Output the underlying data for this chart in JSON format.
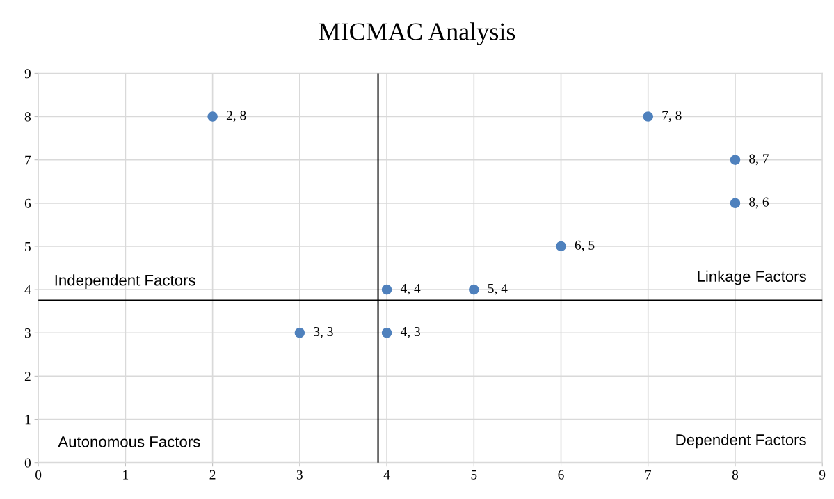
{
  "chart_data": {
    "type": "scatter",
    "title": "MICMAC Analysis",
    "x": [
      2,
      7,
      8,
      8,
      6,
      4,
      5,
      3,
      4
    ],
    "values": [
      8,
      8,
      7,
      6,
      5,
      4,
      4,
      3,
      3
    ],
    "value_labels": [
      "2, 8",
      "7, 8",
      "8, 7",
      "8, 6",
      "6, 5",
      "4, 4",
      "5, 4",
      "3, 3",
      "4, 3"
    ],
    "color": "#4f81bd",
    "marker": "circle",
    "xlim": [
      0,
      9
    ],
    "ylim": [
      0,
      9
    ],
    "xticks": [
      0,
      1,
      2,
      3,
      4,
      5,
      6,
      7,
      8,
      9
    ],
    "yticks": [
      0,
      1,
      2,
      3,
      4,
      5,
      6,
      7,
      8,
      9
    ],
    "grid": true,
    "ref_lines": [
      {
        "axis": "x",
        "value": 3.9,
        "color": "#000000"
      },
      {
        "axis": "y",
        "value": 3.75,
        "color": "#000000"
      }
    ],
    "annotations": [
      "Independent Factors",
      "Linkage Factors",
      "Autonomous Factors",
      "Dependent Factors"
    ]
  }
}
